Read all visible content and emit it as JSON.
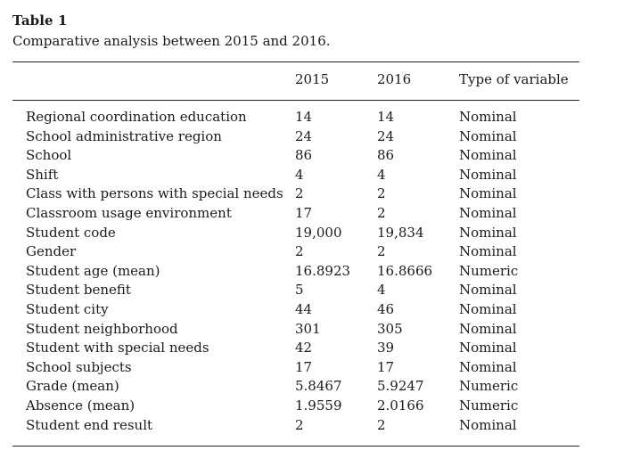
{
  "table": {
    "label": "Table 1",
    "caption": "Comparative analysis between 2015 and 2016.",
    "headers": {
      "variable": "",
      "year_2015": "2015",
      "year_2016": "2016",
      "type": "Type of variable"
    },
    "rows": [
      {
        "variable": "Regional coordination education",
        "v2015": "14",
        "v2016": "14",
        "type": "Nominal"
      },
      {
        "variable": "School administrative region",
        "v2015": "24",
        "v2016": "24",
        "type": "Nominal"
      },
      {
        "variable": "School",
        "v2015": "86",
        "v2016": "86",
        "type": "Nominal"
      },
      {
        "variable": "Shift",
        "v2015": "4",
        "v2016": "4",
        "type": "Nominal"
      },
      {
        "variable": "Class with persons with special needs",
        "v2015": "2",
        "v2016": "2",
        "type": "Nominal"
      },
      {
        "variable": "Classroom usage environment",
        "v2015": "17",
        "v2016": "2",
        "type": "Nominal"
      },
      {
        "variable": "Student code",
        "v2015": "19,000",
        "v2016": "19,834",
        "type": "Nominal"
      },
      {
        "variable": "Gender",
        "v2015": "2",
        "v2016": "2",
        "type": "Nominal"
      },
      {
        "variable": "Student age (mean)",
        "v2015": "16.8923",
        "v2016": "16.8666",
        "type": "Numeric"
      },
      {
        "variable": "Student benefit",
        "v2015": "5",
        "v2016": "4",
        "type": "Nominal"
      },
      {
        "variable": "Student city",
        "v2015": "44",
        "v2016": "46",
        "type": "Nominal"
      },
      {
        "variable": "Student neighborhood",
        "v2015": "301",
        "v2016": "305",
        "type": "Nominal"
      },
      {
        "variable": "Student with special needs",
        "v2015": "42",
        "v2016": "39",
        "type": "Nominal"
      },
      {
        "variable": "School subjects",
        "v2015": "17",
        "v2016": "17",
        "type": "Nominal"
      },
      {
        "variable": "Grade (mean)",
        "v2015": "5.8467",
        "v2016": "5.9247",
        "type": "Numeric"
      },
      {
        "variable": "Absence (mean)",
        "v2015": "1.9559",
        "v2016": "2.0166",
        "type": "Numeric"
      },
      {
        "variable": "Student end result",
        "v2015": "2",
        "v2016": "2",
        "type": "Nominal"
      }
    ]
  }
}
